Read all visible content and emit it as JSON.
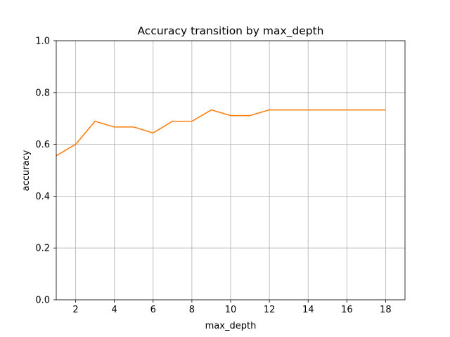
{
  "chart_data": {
    "type": "line",
    "title": "Accuracy transition by max_depth",
    "xlabel": "max_depth",
    "ylabel": "accuracy",
    "xlim": [
      1,
      19
    ],
    "ylim": [
      0.0,
      1.0
    ],
    "xticks": [
      2,
      4,
      6,
      8,
      10,
      12,
      14,
      16,
      18
    ],
    "xtick_labels": [
      "2",
      "4",
      "6",
      "8",
      "10",
      "12",
      "14",
      "16",
      "18"
    ],
    "yticks": [
      0.0,
      0.2,
      0.4,
      0.6,
      0.8,
      1.0
    ],
    "ytick_labels": [
      "0.0",
      "0.2",
      "0.4",
      "0.6",
      "0.8",
      "1.0"
    ],
    "grid": true,
    "series": [
      {
        "color": "#ff7f0e",
        "x": [
          1,
          2,
          3,
          4,
          5,
          6,
          7,
          8,
          9,
          10,
          11,
          12,
          13,
          14,
          15,
          16,
          17,
          18
        ],
        "y": [
          0.556,
          0.6,
          0.689,
          0.667,
          0.667,
          0.644,
          0.689,
          0.689,
          0.733,
          0.711,
          0.711,
          0.733,
          0.733,
          0.733,
          0.733,
          0.733,
          0.733,
          0.733
        ]
      }
    ]
  }
}
